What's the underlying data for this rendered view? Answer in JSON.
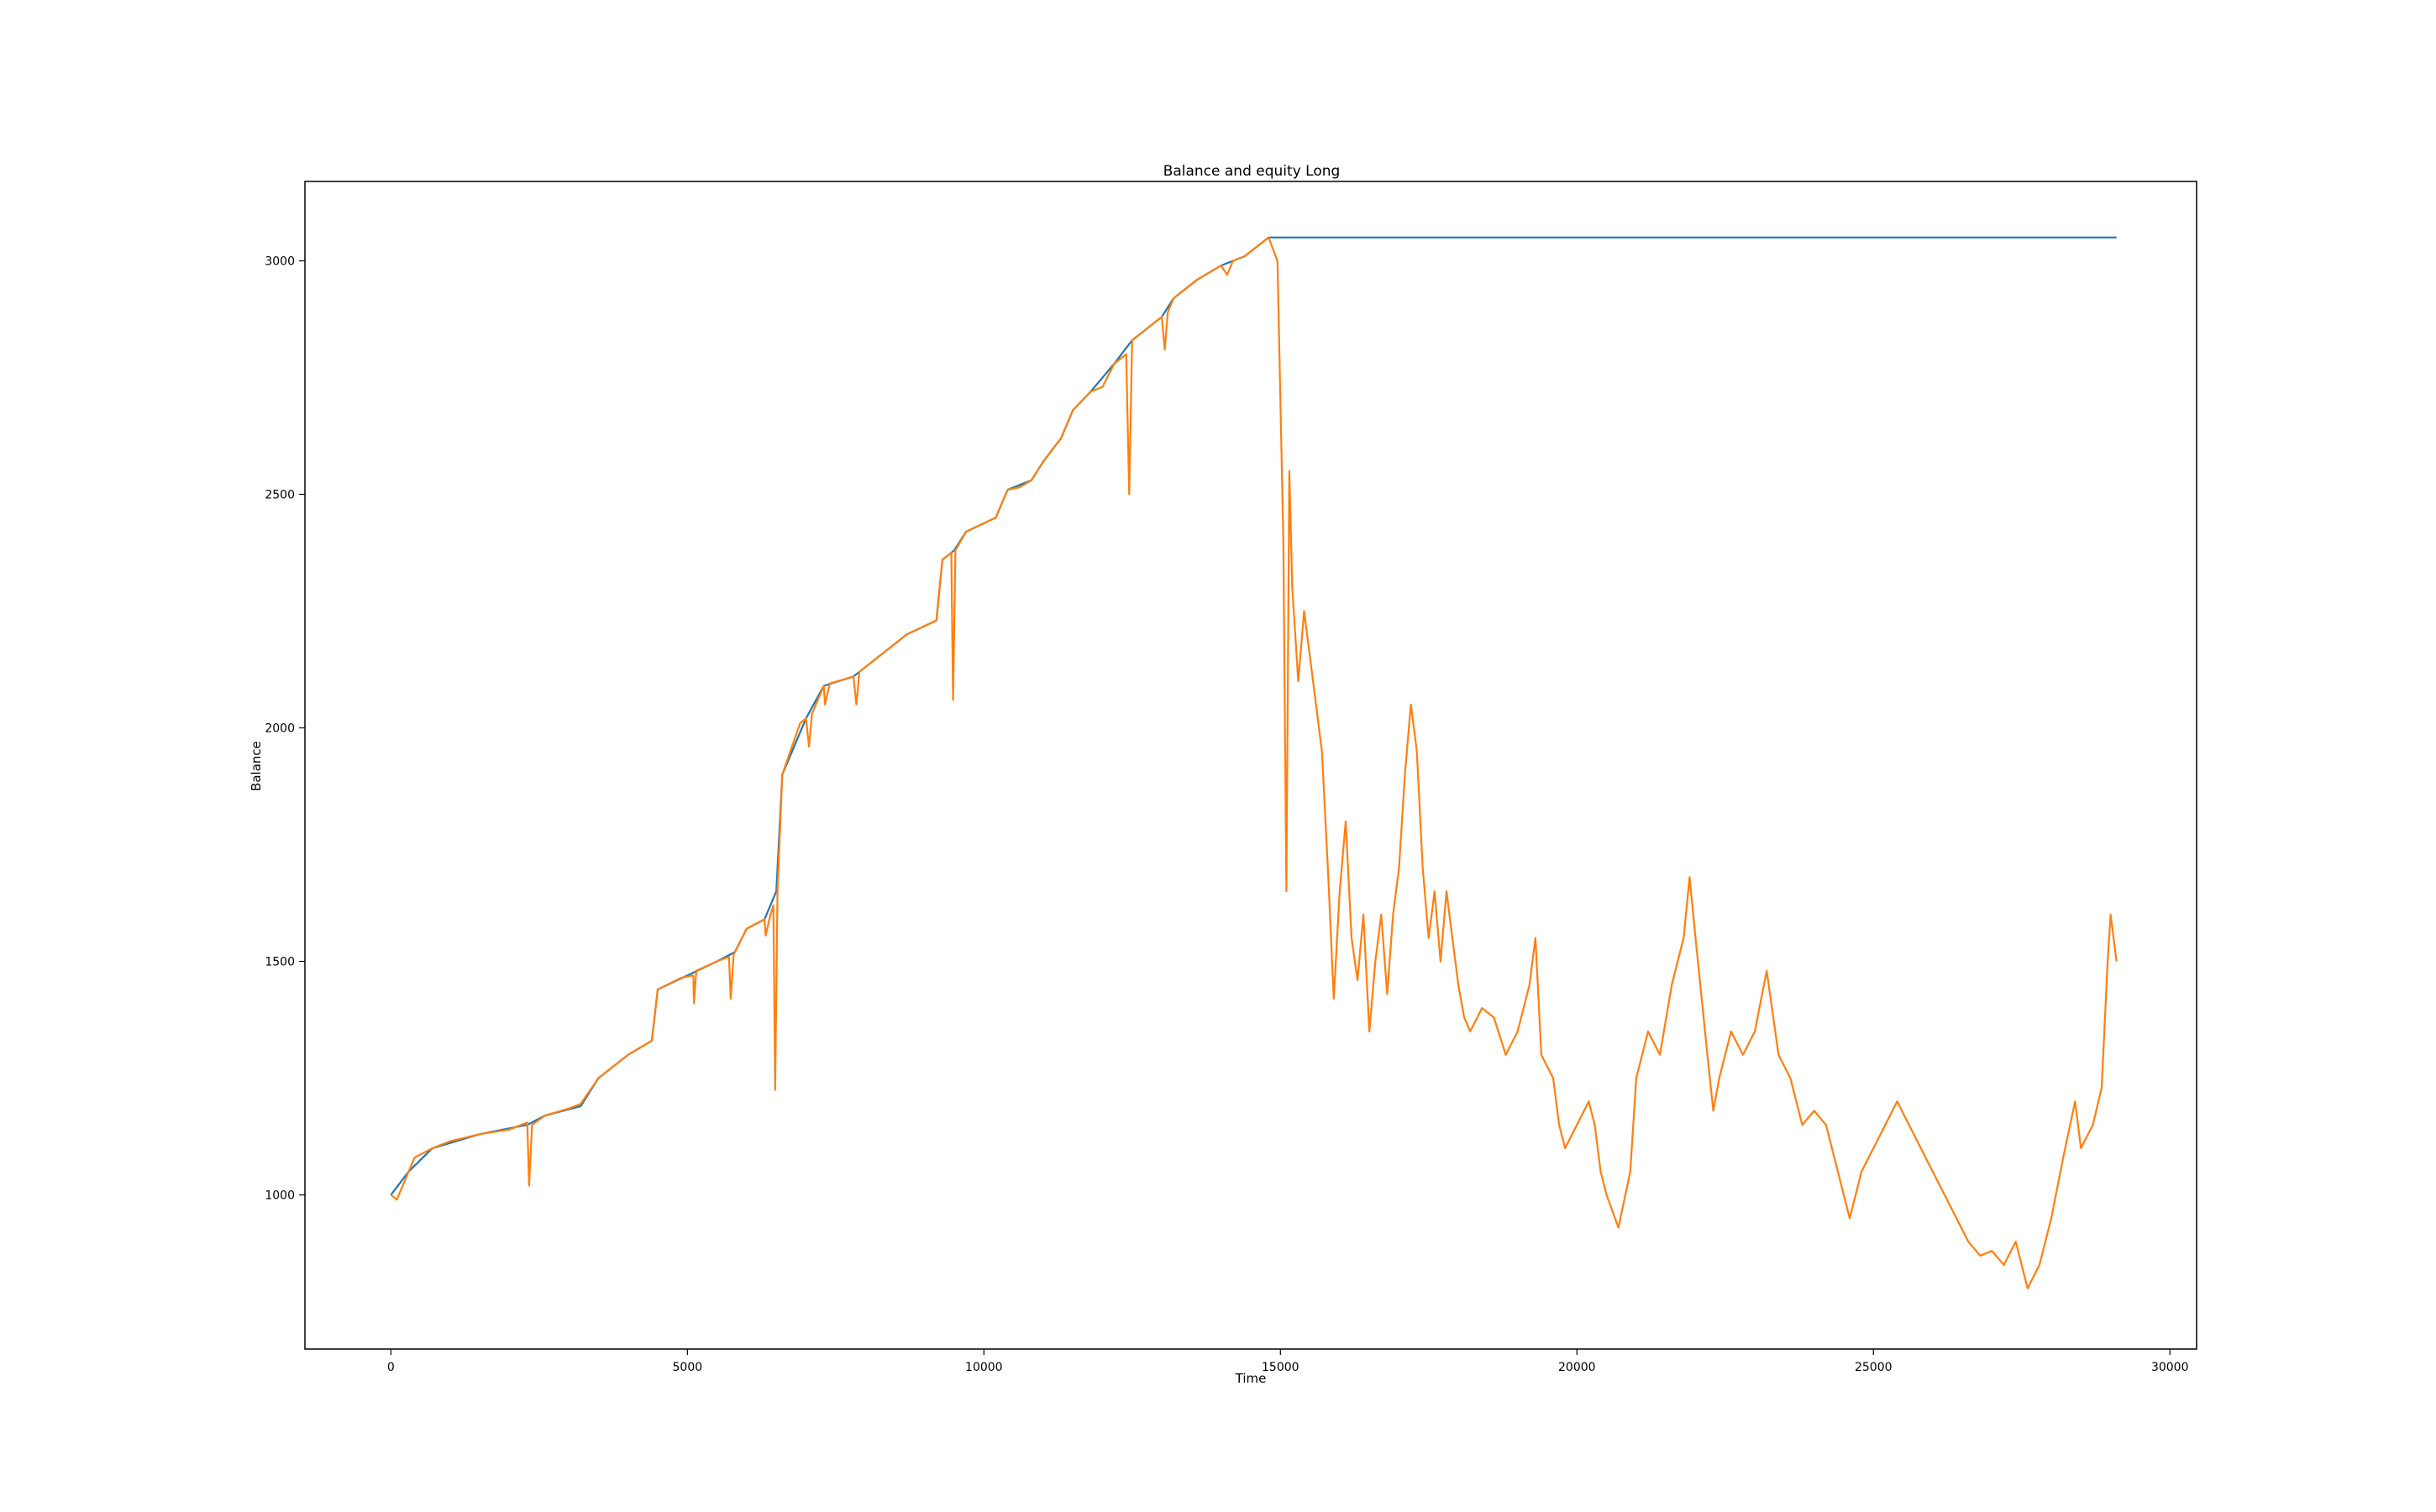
{
  "chart_data": {
    "type": "line",
    "title": "Balance and equity Long",
    "xlabel": "Time",
    "ylabel": "Balance",
    "xlim": [
      -1450,
      30450
    ],
    "ylim": [
      670,
      3170
    ],
    "x_ticks": [
      0,
      5000,
      10000,
      15000,
      20000,
      25000,
      30000
    ],
    "x_tick_labels": [
      "0",
      "5000",
      "10000",
      "15000",
      "20000",
      "25000",
      "30000"
    ],
    "y_ticks": [
      1000,
      1500,
      2000,
      2500,
      3000
    ],
    "y_tick_labels": [
      "1000",
      "1500",
      "2000",
      "2500",
      "3000"
    ],
    "grid": false,
    "legend": "none",
    "series": [
      {
        "color": "#1f77b4",
        "points": [
          [
            0,
            1000
          ],
          [
            300,
            1050
          ],
          [
            700,
            1100
          ],
          [
            1500,
            1130
          ],
          [
            2300,
            1150
          ],
          [
            2600,
            1170
          ],
          [
            3200,
            1190
          ],
          [
            3500,
            1250
          ],
          [
            4000,
            1300
          ],
          [
            4400,
            1330
          ],
          [
            4500,
            1440
          ],
          [
            5000,
            1470
          ],
          [
            5500,
            1500
          ],
          [
            5800,
            1520
          ],
          [
            6000,
            1570
          ],
          [
            6300,
            1590
          ],
          [
            6500,
            1650
          ],
          [
            6600,
            1900
          ],
          [
            7000,
            2020
          ],
          [
            7300,
            2090
          ],
          [
            7800,
            2110
          ],
          [
            8200,
            2150
          ],
          [
            8700,
            2200
          ],
          [
            9200,
            2230
          ],
          [
            9300,
            2360
          ],
          [
            9500,
            2380
          ],
          [
            9700,
            2420
          ],
          [
            10200,
            2450
          ],
          [
            10400,
            2510
          ],
          [
            10800,
            2530
          ],
          [
            11000,
            2570
          ],
          [
            11300,
            2620
          ],
          [
            11500,
            2680
          ],
          [
            11800,
            2720
          ],
          [
            12200,
            2780
          ],
          [
            12500,
            2830
          ],
          [
            13000,
            2880
          ],
          [
            13200,
            2920
          ],
          [
            13600,
            2960
          ],
          [
            14000,
            2990
          ],
          [
            14400,
            3010
          ],
          [
            14800,
            3050
          ],
          [
            29100,
            3050
          ]
        ]
      },
      {
        "color": "#ff7f0e",
        "points": [
          [
            0,
            1000
          ],
          [
            100,
            990
          ],
          [
            150,
            1005
          ],
          [
            300,
            1050
          ],
          [
            400,
            1080
          ],
          [
            700,
            1100
          ],
          [
            1000,
            1115
          ],
          [
            1500,
            1130
          ],
          [
            2000,
            1140
          ],
          [
            2300,
            1155
          ],
          [
            2330,
            1020
          ],
          [
            2380,
            1150
          ],
          [
            2600,
            1170
          ],
          [
            3000,
            1185
          ],
          [
            3200,
            1195
          ],
          [
            3500,
            1250
          ],
          [
            4000,
            1300
          ],
          [
            4400,
            1330
          ],
          [
            4500,
            1440
          ],
          [
            4900,
            1465
          ],
          [
            5100,
            1470
          ],
          [
            5110,
            1410
          ],
          [
            5150,
            1480
          ],
          [
            5500,
            1500
          ],
          [
            5700,
            1510
          ],
          [
            5730,
            1420
          ],
          [
            5780,
            1515
          ],
          [
            6000,
            1570
          ],
          [
            6300,
            1590
          ],
          [
            6320,
            1555
          ],
          [
            6400,
            1600
          ],
          [
            6450,
            1620
          ],
          [
            6480,
            1225
          ],
          [
            6520,
            1650
          ],
          [
            6600,
            1900
          ],
          [
            6900,
            2010
          ],
          [
            7000,
            2020
          ],
          [
            7050,
            1960
          ],
          [
            7100,
            2030
          ],
          [
            7300,
            2090
          ],
          [
            7320,
            2050
          ],
          [
            7400,
            2095
          ],
          [
            7800,
            2110
          ],
          [
            7850,
            2050
          ],
          [
            7900,
            2120
          ],
          [
            8200,
            2150
          ],
          [
            8700,
            2200
          ],
          [
            9200,
            2230
          ],
          [
            9300,
            2360
          ],
          [
            9450,
            2375
          ],
          [
            9480,
            2060
          ],
          [
            9520,
            2380
          ],
          [
            9700,
            2420
          ],
          [
            10200,
            2450
          ],
          [
            10400,
            2510
          ],
          [
            10600,
            2515
          ],
          [
            10800,
            2530
          ],
          [
            11000,
            2570
          ],
          [
            11300,
            2620
          ],
          [
            11500,
            2680
          ],
          [
            11800,
            2720
          ],
          [
            12000,
            2730
          ],
          [
            12200,
            2780
          ],
          [
            12400,
            2800
          ],
          [
            12450,
            2500
          ],
          [
            12500,
            2830
          ],
          [
            13000,
            2880
          ],
          [
            13050,
            2810
          ],
          [
            13100,
            2890
          ],
          [
            13200,
            2920
          ],
          [
            13600,
            2960
          ],
          [
            14000,
            2990
          ],
          [
            14100,
            2970
          ],
          [
            14200,
            3000
          ],
          [
            14400,
            3010
          ],
          [
            14700,
            3040
          ],
          [
            14800,
            3050
          ],
          [
            14950,
            3000
          ],
          [
            15000,
            2700
          ],
          [
            15050,
            2400
          ],
          [
            15100,
            1650
          ],
          [
            15150,
            2550
          ],
          [
            15200,
            2300
          ],
          [
            15300,
            2100
          ],
          [
            15400,
            2250
          ],
          [
            15500,
            2150
          ],
          [
            15600,
            2050
          ],
          [
            15700,
            1950
          ],
          [
            15800,
            1700
          ],
          [
            15900,
            1420
          ],
          [
            16000,
            1650
          ],
          [
            16100,
            1800
          ],
          [
            16200,
            1550
          ],
          [
            16300,
            1460
          ],
          [
            16400,
            1600
          ],
          [
            16500,
            1350
          ],
          [
            16600,
            1500
          ],
          [
            16700,
            1600
          ],
          [
            16800,
            1430
          ],
          [
            16900,
            1600
          ],
          [
            17000,
            1700
          ],
          [
            17100,
            1900
          ],
          [
            17200,
            2050
          ],
          [
            17300,
            1950
          ],
          [
            17400,
            1700
          ],
          [
            17500,
            1550
          ],
          [
            17600,
            1650
          ],
          [
            17700,
            1500
          ],
          [
            17800,
            1650
          ],
          [
            17900,
            1550
          ],
          [
            18000,
            1450
          ],
          [
            18100,
            1380
          ],
          [
            18200,
            1350
          ],
          [
            18400,
            1400
          ],
          [
            18600,
            1380
          ],
          [
            18800,
            1300
          ],
          [
            19000,
            1350
          ],
          [
            19200,
            1450
          ],
          [
            19300,
            1550
          ],
          [
            19400,
            1300
          ],
          [
            19600,
            1250
          ],
          [
            19700,
            1150
          ],
          [
            19800,
            1100
          ],
          [
            20000,
            1150
          ],
          [
            20200,
            1200
          ],
          [
            20300,
            1150
          ],
          [
            20400,
            1050
          ],
          [
            20500,
            1000
          ],
          [
            20700,
            930
          ],
          [
            20900,
            1050
          ],
          [
            21000,
            1250
          ],
          [
            21200,
            1350
          ],
          [
            21400,
            1300
          ],
          [
            21600,
            1450
          ],
          [
            21800,
            1550
          ],
          [
            21900,
            1680
          ],
          [
            22000,
            1550
          ],
          [
            22200,
            1300
          ],
          [
            22300,
            1180
          ],
          [
            22400,
            1250
          ],
          [
            22600,
            1350
          ],
          [
            22800,
            1300
          ],
          [
            23000,
            1350
          ],
          [
            23200,
            1480
          ],
          [
            23400,
            1300
          ],
          [
            23600,
            1250
          ],
          [
            23800,
            1150
          ],
          [
            24000,
            1180
          ],
          [
            24200,
            1150
          ],
          [
            24400,
            1050
          ],
          [
            24600,
            950
          ],
          [
            24800,
            1050
          ],
          [
            25000,
            1100
          ],
          [
            25200,
            1150
          ],
          [
            25400,
            1200
          ],
          [
            25600,
            1150
          ],
          [
            25800,
            1100
          ],
          [
            26000,
            1050
          ],
          [
            26200,
            1000
          ],
          [
            26400,
            950
          ],
          [
            26600,
            900
          ],
          [
            26800,
            870
          ],
          [
            27000,
            880
          ],
          [
            27200,
            850
          ],
          [
            27400,
            900
          ],
          [
            27600,
            800
          ],
          [
            27800,
            850
          ],
          [
            28000,
            950
          ],
          [
            28200,
            1080
          ],
          [
            28400,
            1200
          ],
          [
            28500,
            1100
          ],
          [
            28700,
            1150
          ],
          [
            28850,
            1230
          ],
          [
            28950,
            1500
          ],
          [
            29000,
            1600
          ],
          [
            29100,
            1500
          ]
        ]
      }
    ]
  }
}
